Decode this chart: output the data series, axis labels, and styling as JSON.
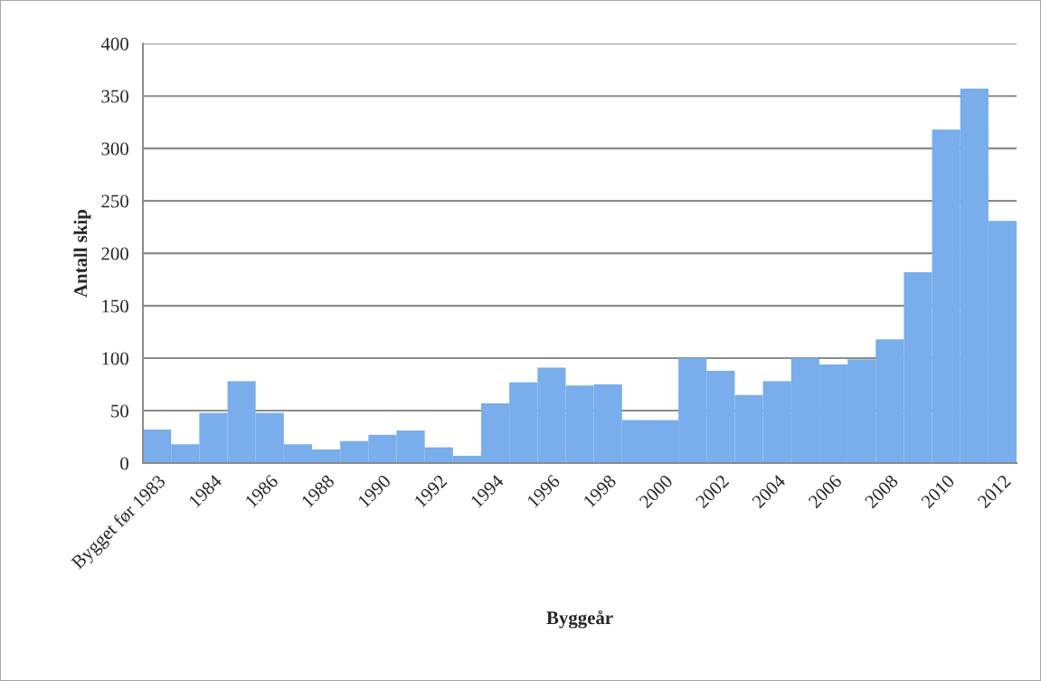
{
  "chart_data": {
    "type": "bar",
    "xlabel": "Byggeår",
    "ylabel": "Antall skip",
    "categories": [
      "Bygget før 1983",
      null,
      "1984",
      null,
      "1986",
      null,
      "1988",
      null,
      "1990",
      null,
      "1992",
      null,
      "1994",
      null,
      "1996",
      null,
      "1998",
      null,
      "2000",
      null,
      "2002",
      null,
      "2004",
      null,
      "2006",
      null,
      "2008",
      null,
      "2010",
      null,
      "2012"
    ],
    "values": [
      32,
      18,
      48,
      78,
      48,
      18,
      13,
      21,
      27,
      31,
      15,
      7,
      57,
      77,
      91,
      74,
      75,
      41,
      41,
      100,
      88,
      65,
      78,
      100,
      94,
      99,
      118,
      182,
      318,
      357,
      231
    ],
    "color": "#79adeb",
    "ylim": [
      0,
      400
    ],
    "yticks": [
      0,
      50,
      100,
      150,
      200,
      250,
      300,
      350,
      400
    ],
    "grid": "y"
  }
}
